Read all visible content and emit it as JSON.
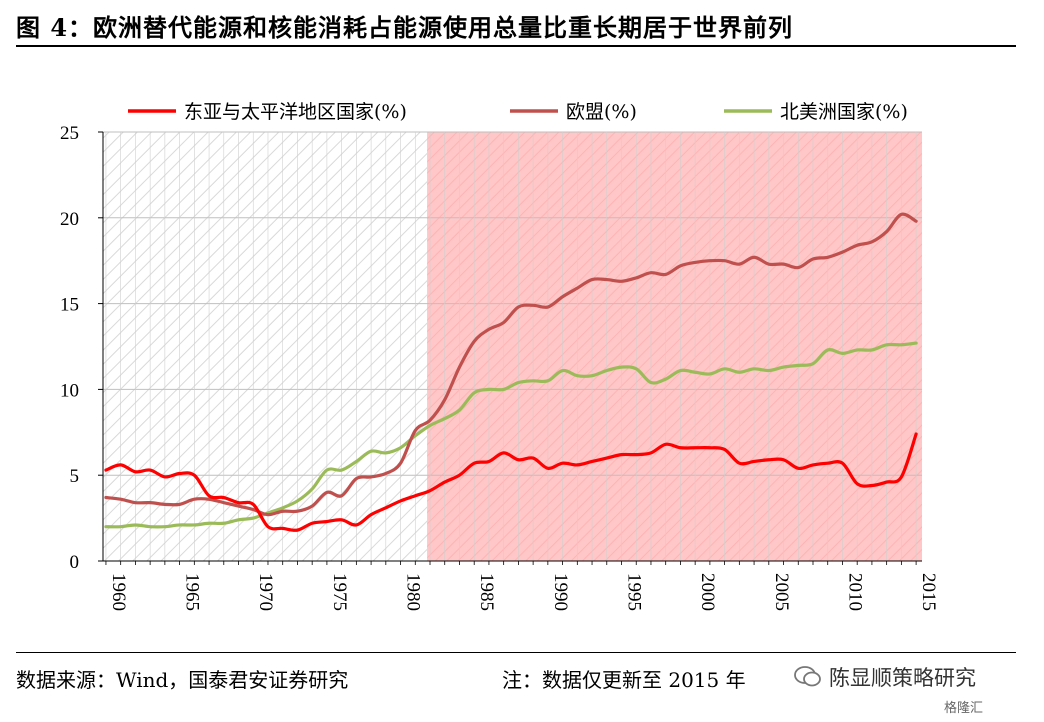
{
  "header": {
    "title": "图 4：欧洲替代能源和核能消耗占能源使用总量比重长期居于世界前列"
  },
  "footer": {
    "source": "数据来源：Wind，国泰君安证券研究",
    "note": "注：数据仅更新至 2015 年",
    "watermark": "陈显顺策略研究",
    "watermark2": "格隆汇"
  },
  "colors": {
    "east_asia": "#ff0000",
    "eu": "#c0504d",
    "north_america": "#9bbb59",
    "shade": "#ffc7c7",
    "hatch": "#d9d9d9"
  },
  "chart_data": {
    "type": "line",
    "title": "",
    "xlabel": "",
    "ylabel": "",
    "ylim": [
      0,
      25
    ],
    "yticks": [
      0,
      5,
      10,
      15,
      20,
      25
    ],
    "xlim": [
      1960,
      2015
    ],
    "xticks": [
      "1960",
      "1965",
      "1970",
      "1975",
      "1980",
      "1985",
      "1990",
      "1995",
      "2000",
      "2005",
      "2010",
      "2015"
    ],
    "grid": true,
    "legend_position": "top",
    "shaded_region": {
      "from": 1981.8,
      "to": 2015.5
    },
    "x": [
      1960,
      1961,
      1962,
      1963,
      1964,
      1965,
      1966,
      1967,
      1968,
      1969,
      1970,
      1971,
      1972,
      1973,
      1974,
      1975,
      1976,
      1977,
      1978,
      1979,
      1980,
      1981,
      1982,
      1983,
      1984,
      1985,
      1986,
      1987,
      1988,
      1989,
      1990,
      1991,
      1992,
      1993,
      1994,
      1995,
      1996,
      1997,
      1998,
      1999,
      2000,
      2001,
      2002,
      2003,
      2004,
      2005,
      2006,
      2007,
      2008,
      2009,
      2010,
      2011,
      2012,
      2013,
      2014,
      2015
    ],
    "series": [
      {
        "name": "东亚与太平洋地区国家(%)",
        "color_key": "east_asia",
        "values": [
          5.3,
          5.6,
          5.2,
          5.3,
          4.9,
          5.1,
          5.0,
          3.8,
          3.7,
          3.4,
          3.3,
          2.0,
          1.9,
          1.8,
          2.2,
          2.3,
          2.4,
          2.1,
          2.7,
          3.1,
          3.5,
          3.8,
          4.1,
          4.6,
          5.0,
          5.7,
          5.8,
          6.3,
          5.9,
          6.0,
          5.4,
          5.7,
          5.6,
          5.8,
          6.0,
          6.2,
          6.2,
          6.3,
          6.8,
          6.6,
          6.6,
          6.6,
          6.5,
          5.7,
          5.8,
          5.9,
          5.9,
          5.4,
          5.6,
          5.7,
          5.7,
          4.5,
          4.4,
          4.6,
          4.9,
          7.4
        ]
      },
      {
        "name": "欧盟(%)",
        "color_key": "eu",
        "values": [
          3.7,
          3.6,
          3.4,
          3.4,
          3.3,
          3.3,
          3.6,
          3.6,
          3.4,
          3.2,
          3.0,
          2.7,
          2.9,
          2.9,
          3.2,
          4.0,
          3.8,
          4.8,
          4.9,
          5.1,
          5.7,
          7.6,
          8.2,
          9.4,
          11.3,
          12.8,
          13.5,
          13.9,
          14.8,
          14.9,
          14.8,
          15.4,
          15.9,
          16.4,
          16.4,
          16.3,
          16.5,
          16.8,
          16.7,
          17.2,
          17.4,
          17.5,
          17.5,
          17.3,
          17.7,
          17.3,
          17.3,
          17.1,
          17.6,
          17.7,
          18.0,
          18.4,
          18.6,
          19.2,
          20.2,
          19.8
        ]
      },
      {
        "name": "北美洲国家(%)",
        "color_key": "north_america",
        "values": [
          2.0,
          2.0,
          2.1,
          2.0,
          2.0,
          2.1,
          2.1,
          2.2,
          2.2,
          2.4,
          2.5,
          2.8,
          3.1,
          3.5,
          4.2,
          5.3,
          5.3,
          5.8,
          6.4,
          6.3,
          6.6,
          7.3,
          7.9,
          8.3,
          8.8,
          9.8,
          10.0,
          10.0,
          10.4,
          10.5,
          10.5,
          11.1,
          10.8,
          10.8,
          11.1,
          11.3,
          11.2,
          10.4,
          10.6,
          11.1,
          11.0,
          10.9,
          11.2,
          11.0,
          11.2,
          11.1,
          11.3,
          11.4,
          11.5,
          12.3,
          12.1,
          12.3,
          12.3,
          12.6,
          12.6,
          12.7
        ]
      }
    ]
  }
}
